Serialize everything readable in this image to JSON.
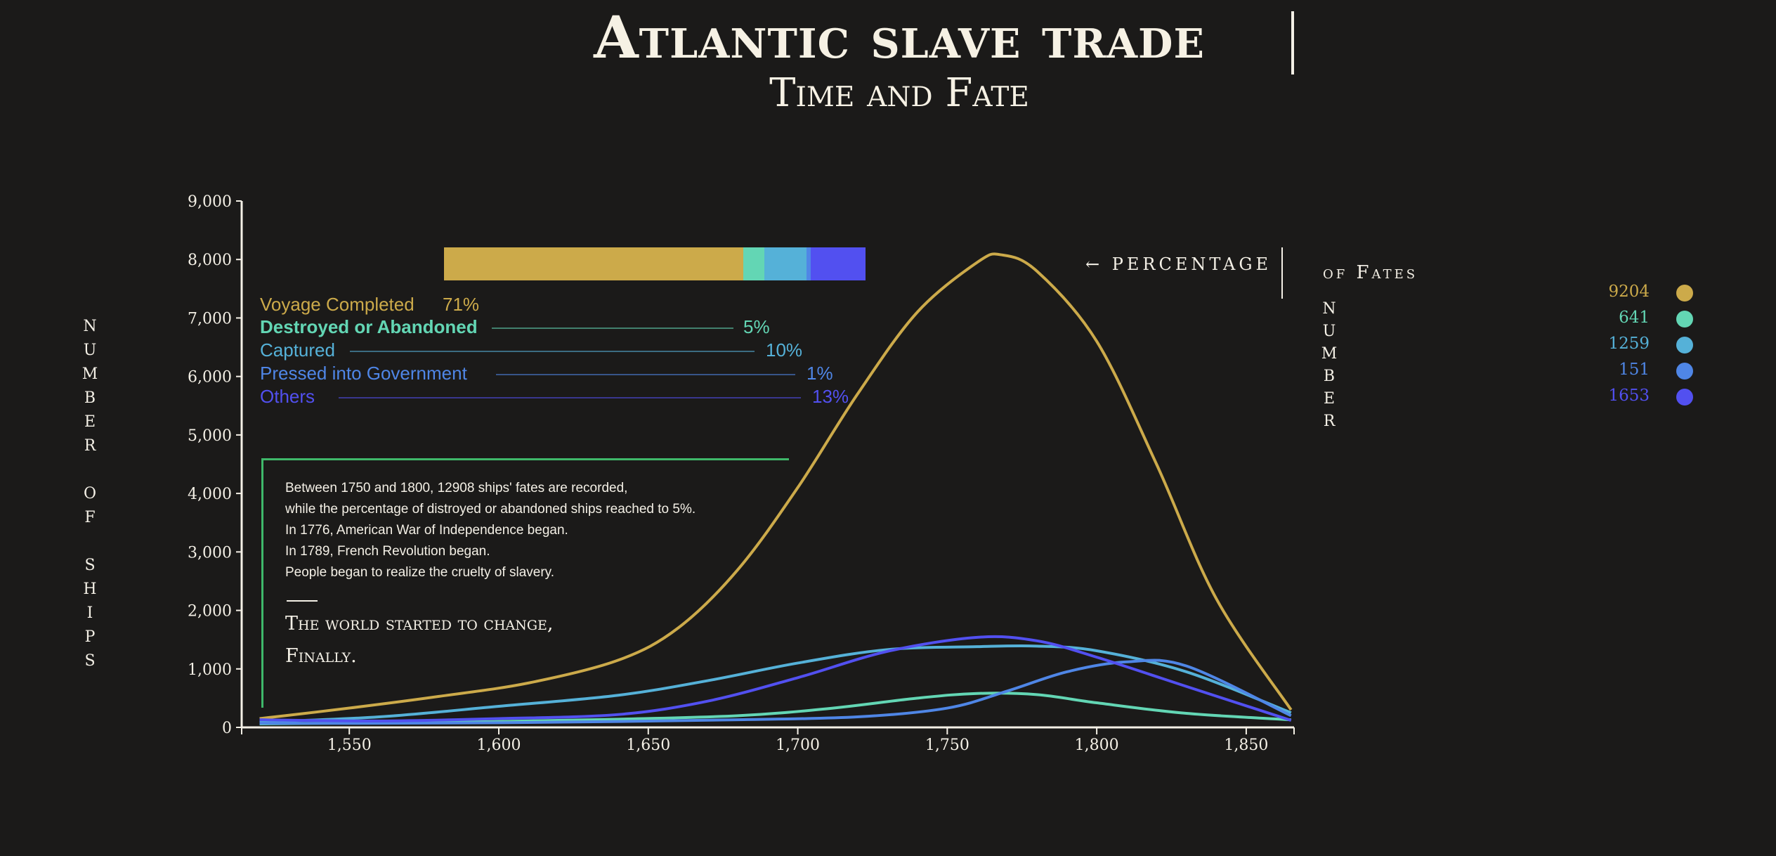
{
  "header": {
    "title": "Atlantic slave trade",
    "subtitle": "Time and Fate"
  },
  "side_labels": {
    "y_axis_vertical": "NUMBER OF SHIPS",
    "number_vertical": "NUMBER"
  },
  "labels": {
    "percentage": "← PERCENTAGE",
    "of_fates": "of Fates"
  },
  "colors": {
    "voyage": "#ccaa4a",
    "destroyed": "#63d6b4",
    "captured": "#55b1d8",
    "pressed": "#4f86e6",
    "others": "#5250f0",
    "background": "#1b1a19",
    "annotation_border": "#3fb86a"
  },
  "fates": [
    {
      "name": "Voyage Completed",
      "percent": "71%",
      "count": "9204",
      "color_key": "voyage"
    },
    {
      "name": "Destroyed or Abandoned",
      "percent": "5%",
      "count": "641",
      "color_key": "destroyed"
    },
    {
      "name": "Captured",
      "percent": "10%",
      "count": "1259",
      "color_key": "captured"
    },
    {
      "name": "Pressed into Government",
      "percent": "1%",
      "count": "151",
      "color_key": "pressed"
    },
    {
      "name": "Others",
      "percent": "13%",
      "count": "1653",
      "color_key": "others"
    }
  ],
  "annotation": {
    "lines": [
      "Between 1750 and 1800, 12908 ships' fates are recorded,",
      "while the percentage of distroyed or abandoned ships reached to 5%.",
      "In 1776, American War of Independence began.",
      "In 1789, French Revolution began.",
      "People began to realize the cruelty of slavery."
    ],
    "conclusion": [
      "The world started to change,",
      "Finally."
    ]
  },
  "chart_data": {
    "type": "line",
    "title": "Atlantic slave trade",
    "subtitle": "Time and Fate",
    "ylabel": "NUMBER OF SHIPS",
    "xlabel": "",
    "xlim": [
      1514,
      1866
    ],
    "ylim": [
      0,
      9000
    ],
    "x_ticks": [
      1550,
      1600,
      1650,
      1700,
      1750,
      1800,
      1850
    ],
    "x_tick_labels": [
      "1,550",
      "1,600",
      "1,650",
      "1,700",
      "1,750",
      "1,800",
      "1,850"
    ],
    "y_ticks": [
      0,
      1000,
      2000,
      3000,
      4000,
      5000,
      6000,
      7000,
      8000,
      9000
    ],
    "y_tick_labels": [
      "0",
      "1,000",
      "2,000",
      "3,000",
      "4,000",
      "5,000",
      "6,000",
      "7,000",
      "8,000",
      "9,000"
    ],
    "grid": false,
    "legend": "right",
    "series": [
      {
        "name": "Voyage Completed",
        "color": "#ccaa4a",
        "x": [
          1520,
          1550,
          1580,
          1610,
          1640,
          1660,
          1680,
          1700,
          1720,
          1740,
          1760,
          1768,
          1780,
          1800,
          1820,
          1840,
          1865
        ],
        "y": [
          150,
          330,
          530,
          760,
          1150,
          1700,
          2700,
          4100,
          5700,
          7100,
          7950,
          8080,
          7800,
          6600,
          4500,
          2200,
          300
        ]
      },
      {
        "name": "Destroyed or Abandoned",
        "color": "#63d6b4",
        "x": [
          1520,
          1560,
          1600,
          1640,
          1680,
          1710,
          1740,
          1760,
          1780,
          1800,
          1830,
          1865
        ],
        "y": [
          60,
          80,
          100,
          140,
          200,
          320,
          500,
          580,
          560,
          420,
          240,
          130
        ]
      },
      {
        "name": "Captured",
        "color": "#55b1d8",
        "x": [
          1520,
          1560,
          1600,
          1640,
          1670,
          1700,
          1730,
          1760,
          1780,
          1800,
          1830,
          1865
        ],
        "y": [
          90,
          180,
          360,
          550,
          800,
          1100,
          1330,
          1380,
          1390,
          1310,
          950,
          250
        ]
      },
      {
        "name": "Pressed into Government",
        "color": "#4f86e6",
        "x": [
          1520,
          1560,
          1600,
          1640,
          1680,
          1720,
          1750,
          1770,
          1790,
          1810,
          1830,
          1865
        ],
        "y": [
          70,
          70,
          80,
          100,
          130,
          180,
          330,
          620,
          950,
          1120,
          1050,
          200
        ]
      },
      {
        "name": "Others",
        "color": "#5250f0",
        "x": [
          1520,
          1560,
          1600,
          1640,
          1670,
          1700,
          1730,
          1760,
          1780,
          1800,
          1830,
          1865
        ],
        "y": [
          130,
          110,
          150,
          220,
          450,
          850,
          1300,
          1540,
          1480,
          1200,
          700,
          120
        ]
      }
    ]
  }
}
